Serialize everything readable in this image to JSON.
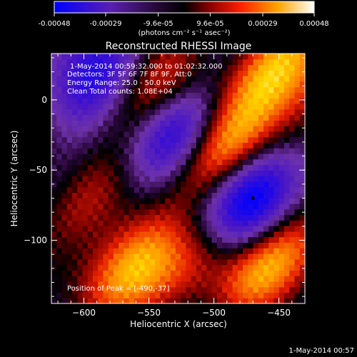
{
  "colorbar": {
    "tick_labels": [
      "-0.00048",
      "-0.00029",
      "-9.6e-05",
      "9.6e-05",
      "0.00029",
      "0.00048"
    ],
    "tick_values": [
      -0.00048,
      -0.00029,
      -9.6e-05,
      9.6e-05,
      0.00029,
      0.00048
    ],
    "range": [
      -0.00048,
      0.00048
    ],
    "units_label": "(photons cm⁻² s⁻¹ asec⁻²)",
    "colormap": [
      "#0000ff",
      "#4b0082",
      "#7b2fbf",
      "#000000",
      "#8b0000",
      "#ff2000",
      "#ff8c00",
      "#ffd700",
      "#ffffff"
    ]
  },
  "chart_data": {
    "type": "heatmap",
    "title": "Reconstructed RHESSI Image",
    "xlabel": "Heliocentric X (arcsec)",
    "ylabel": "Heliocentric Y (arcsec)",
    "xlim": [
      -625,
      -430
    ],
    "ylim": [
      -145,
      33
    ],
    "x_ticks": [
      -600,
      -550,
      -500,
      -450
    ],
    "x_tick_labels": [
      "−600",
      "−550",
      "−500",
      "−450"
    ],
    "y_ticks": [
      0,
      -50,
      -100
    ],
    "y_tick_labels": [
      "0",
      "−50",
      "−100"
    ],
    "annotations": [
      "1-May-2014 00:59:32.000 to 01:02:32.000",
      "Detectors: 3F 5F 6F 7F 8F 9F, Att:0",
      "Energy Range: 25.0 - 50.0 keV",
      "Clean    Total counts: 1.08E+04",
      "Position of Peak = [-490,-37]"
    ],
    "peak": [
      -490,
      -37
    ],
    "features": [
      {
        "kind": "source",
        "x": -493,
        "y": -35,
        "value": 0.00048
      },
      {
        "kind": "source",
        "x": -462,
        "y": -120,
        "value": 0.00034
      },
      {
        "kind": "source",
        "x": -453,
        "y": 28,
        "value": 0.00035
      },
      {
        "kind": "source",
        "x": -600,
        "y": -72,
        "value": 0.00026
      },
      {
        "kind": "source",
        "x": -560,
        "y": -118,
        "value": 0.00026
      },
      {
        "kind": "source",
        "x": -545,
        "y": 12,
        "value": 0.00024
      },
      {
        "kind": "source",
        "x": -512,
        "y": -112,
        "value": 0.00018
      },
      {
        "kind": "negative",
        "x": -533,
        "y": -22,
        "value": -0.00045
      },
      {
        "kind": "negative",
        "x": -470,
        "y": -75,
        "value": -0.00048
      },
      {
        "kind": "negative",
        "x": -590,
        "y": 12,
        "value": -0.00029
      }
    ]
  },
  "footer": {
    "timestamp": "1-May-2014 00:57"
  }
}
